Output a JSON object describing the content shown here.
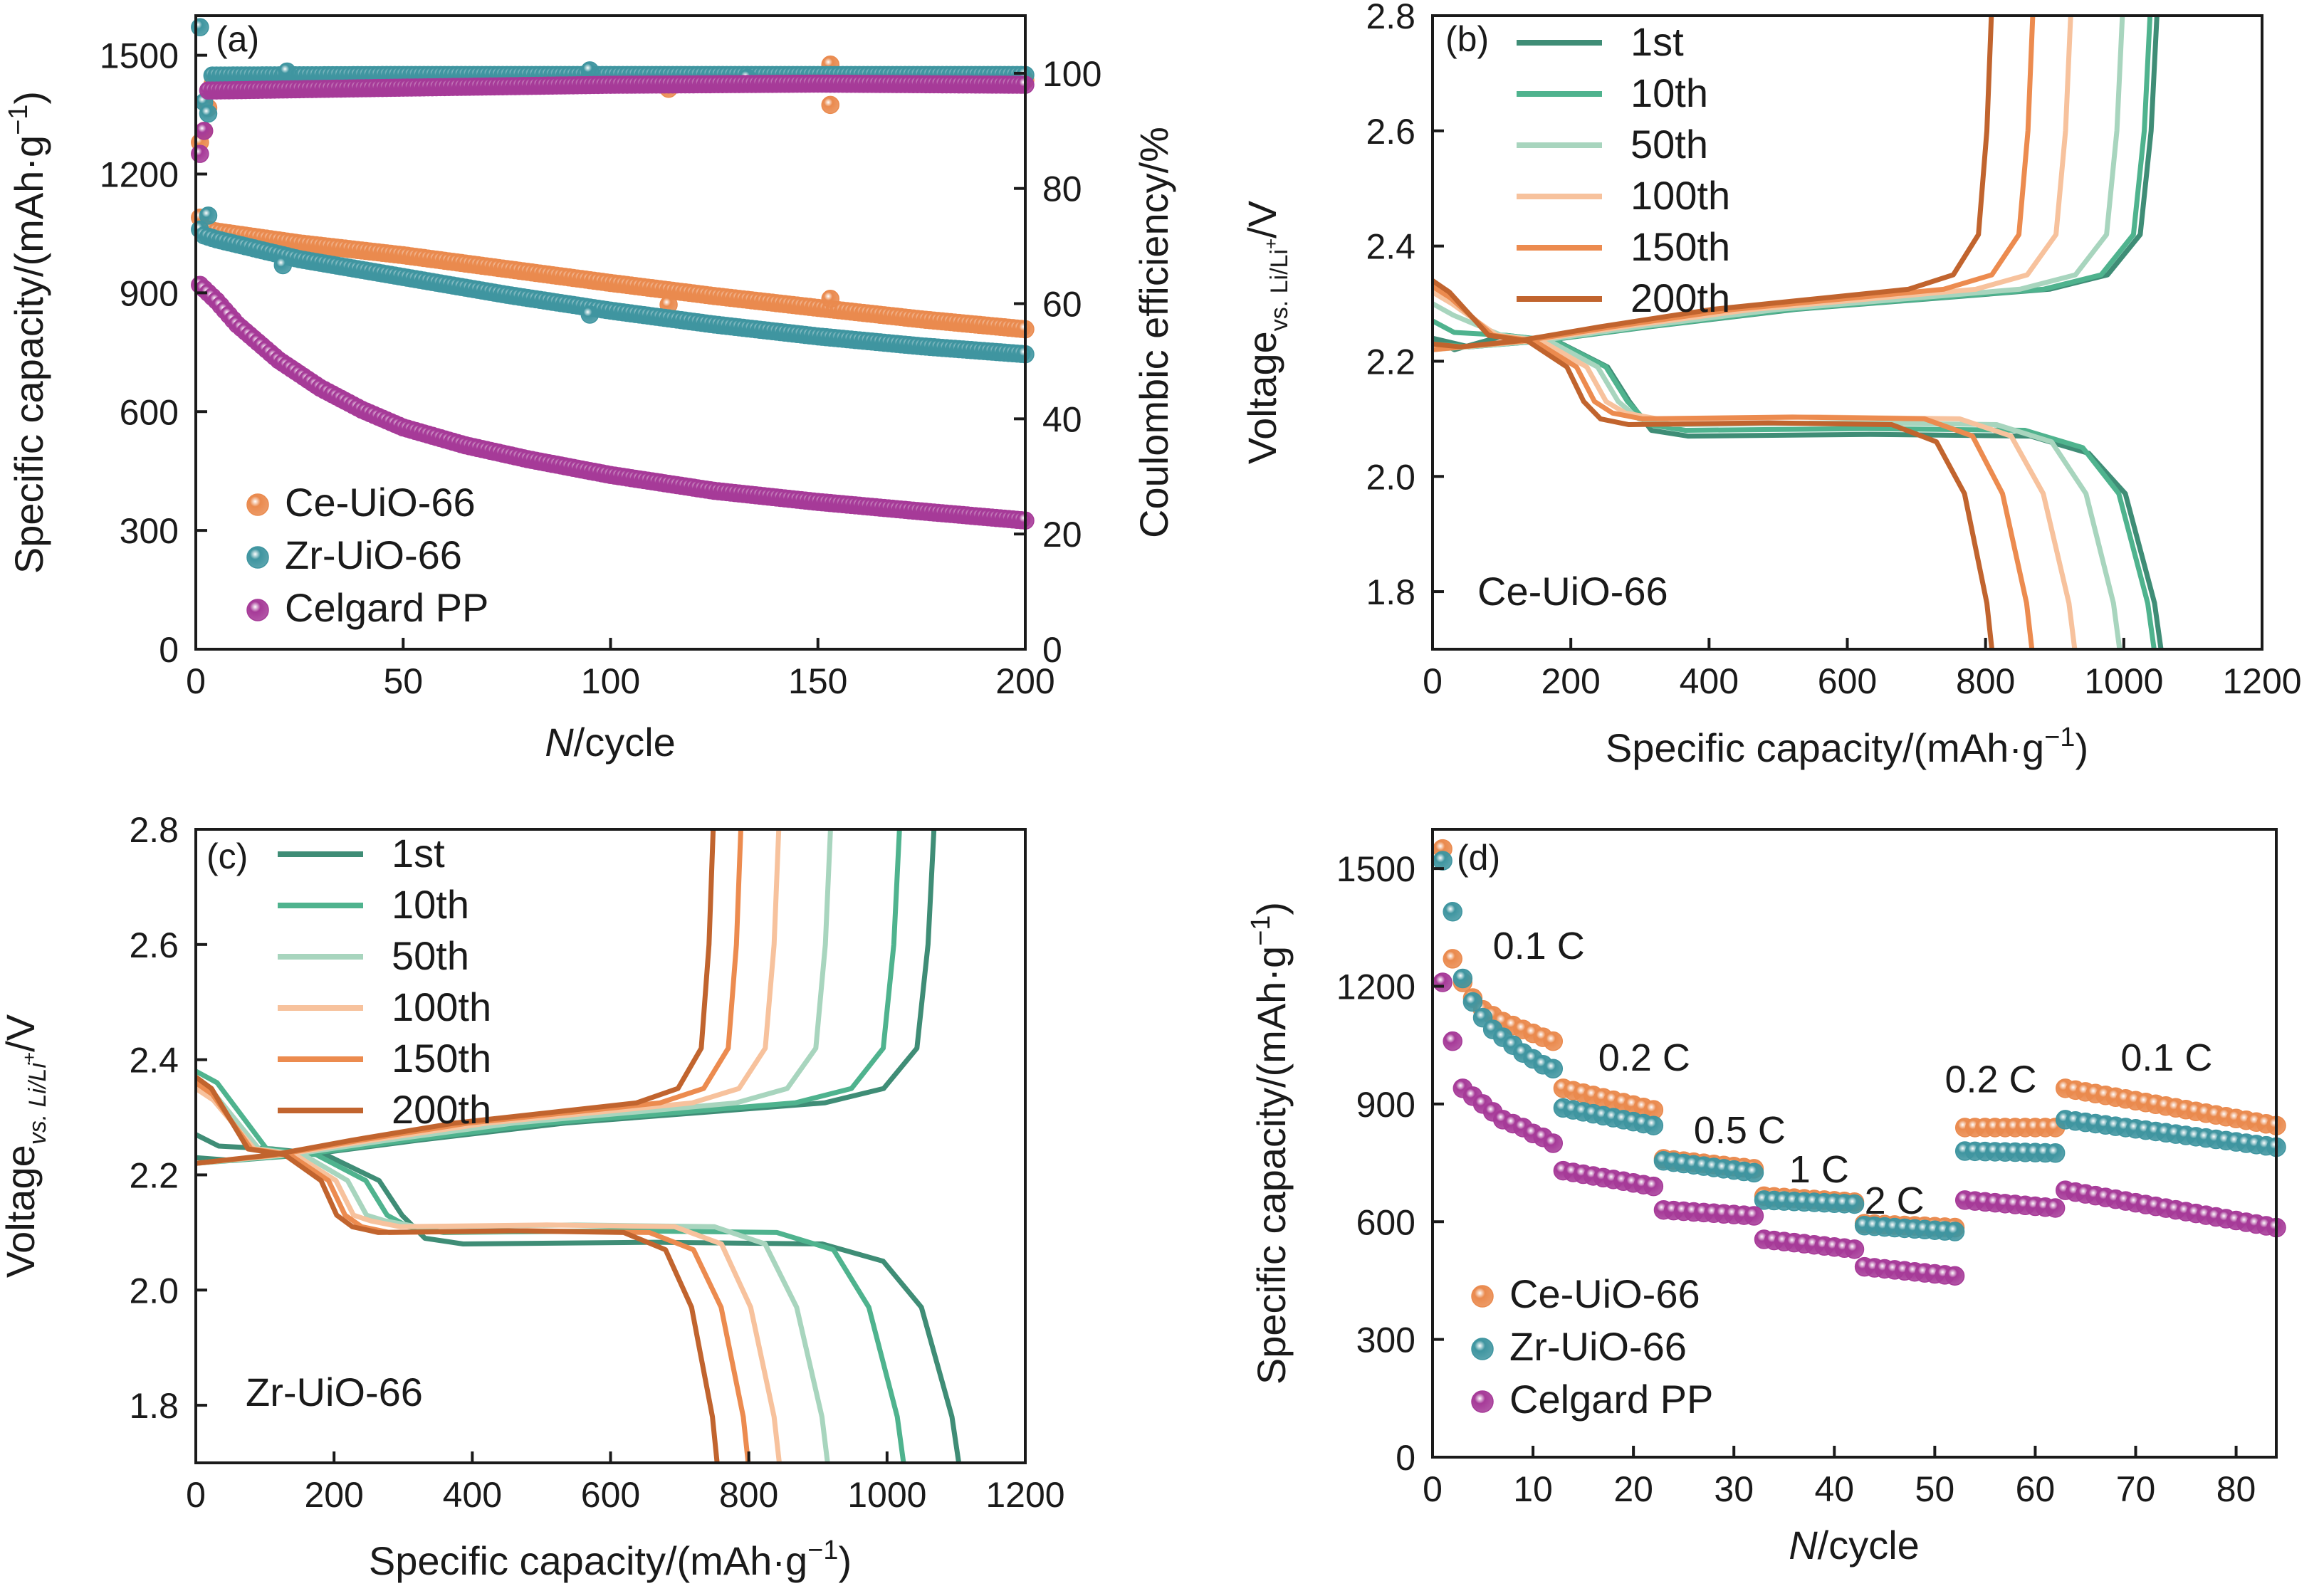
{
  "colors": {
    "ce": "#ea8a4e",
    "zr": "#3f95a0",
    "pp": "#a63a98",
    "cycles": [
      "#3f8d76",
      "#4fb38e",
      "#a8d5be",
      "#f7c29d",
      "#ec8b4f",
      "#c1642e"
    ]
  },
  "marker_style": "shaded-sphere",
  "chart_data": [
    {
      "id": "a",
      "type": "scatter",
      "panel_label": "(a)",
      "xlabel_italic": "N",
      "xlabel_rest": "/cycle",
      "ylabel_text": "Specific capacity/(mAh·g",
      "ylabel_sup": "−1",
      "ylabel_close": ")",
      "y2label": "Coulombic efficiency/%",
      "xlim": [
        0,
        200
      ],
      "ylim": [
        0,
        1600
      ],
      "y2lim": [
        0,
        110
      ],
      "xticks": [
        0,
        50,
        100,
        150,
        200
      ],
      "yticks": [
        0,
        300,
        600,
        900,
        1200,
        1500
      ],
      "y2ticks": [
        0,
        20,
        40,
        60,
        80,
        100
      ],
      "legend": [
        "Ce-UiO-66",
        "Zr-UiO-66",
        "Celgard PP"
      ],
      "legend_position": "bottom-left",
      "series": [
        {
          "name": "Ce-UiO-66",
          "color_key": "ce",
          "axis": "left",
          "anchors": [
            [
              1,
              1090
            ],
            [
              2,
              1062
            ],
            [
              5,
              1055
            ],
            [
              25,
              1025
            ],
            [
              50,
              995
            ],
            [
              75,
              960
            ],
            [
              100,
              925
            ],
            [
              125,
              892
            ],
            [
              150,
              862
            ],
            [
              175,
              833
            ],
            [
              200,
              808
            ]
          ],
          "outliers": [
            [
              114,
              870
            ],
            [
              153,
              885
            ]
          ]
        },
        {
          "name": "Zr-UiO-66",
          "color_key": "zr",
          "axis": "left",
          "anchors": [
            [
              1,
              1060
            ],
            [
              2,
              1045
            ],
            [
              5,
              1035
            ],
            [
              25,
              985
            ],
            [
              50,
              940
            ],
            [
              75,
              895
            ],
            [
              100,
              855
            ],
            [
              125,
              820
            ],
            [
              150,
              790
            ],
            [
              175,
              765
            ],
            [
              200,
              745
            ]
          ],
          "outliers": [
            [
              3,
              1095
            ],
            [
              21,
              970
            ],
            [
              95,
              845
            ]
          ]
        },
        {
          "name": "Celgard PP",
          "color_key": "pp",
          "axis": "left",
          "anchors": [
            [
              1,
              920
            ],
            [
              5,
              880
            ],
            [
              10,
              820
            ],
            [
              20,
              730
            ],
            [
              30,
              660
            ],
            [
              40,
              605
            ],
            [
              50,
              560
            ],
            [
              65,
              515
            ],
            [
              80,
              480
            ],
            [
              100,
              440
            ],
            [
              125,
              400
            ],
            [
              150,
              372
            ],
            [
              175,
              348
            ],
            [
              200,
              325
            ]
          ]
        },
        {
          "name": "Ce-UiO-66",
          "color_key": "ce",
          "axis": "right",
          "anchors": [
            [
              4,
              98
            ],
            [
              50,
              98.4
            ],
            [
              100,
              98.6
            ],
            [
              150,
              98.8
            ],
            [
              200,
              98.8
            ]
          ],
          "start": [
            [
              1,
              88
            ],
            [
              2,
              90
            ],
            [
              3,
              94
            ]
          ],
          "outliers": [
            [
              153,
              101.5
            ],
            [
              153,
              94.5
            ],
            [
              114,
              97.3
            ]
          ]
        },
        {
          "name": "Zr-UiO-66",
          "color_key": "zr",
          "axis": "right",
          "anchors": [
            [
              4,
              99.6
            ],
            [
              50,
              99.7
            ],
            [
              100,
              99.7
            ],
            [
              150,
              99.7
            ],
            [
              200,
              99.7
            ]
          ],
          "start": [
            [
              1,
              108
            ],
            [
              2,
              95
            ],
            [
              3,
              93
            ]
          ],
          "outliers": [
            [
              22,
              100.3
            ],
            [
              95,
              100.5
            ],
            [
              133,
              99.2
            ]
          ]
        },
        {
          "name": "Celgard PP",
          "color_key": "pp",
          "axis": "right",
          "anchors": [
            [
              4,
              97
            ],
            [
              50,
              97.5
            ],
            [
              100,
              98
            ],
            [
              150,
              98.2
            ],
            [
              200,
              98
            ]
          ],
          "start": [
            [
              1,
              86
            ],
            [
              2,
              90
            ]
          ]
        }
      ]
    },
    {
      "id": "b",
      "type": "line",
      "panel_label": "(b)",
      "sample_label": "Ce-UiO-66",
      "xlabel_text": "Specific capacity/(mAh·g",
      "xlabel_sup": "−1",
      "xlabel_close": ")",
      "ylabel_text": "Voltage",
      "ylabel_sub": "vs. Li/Li",
      "ylabel_subsup": "+",
      "ylabel_rest": "/V",
      "xlim": [
        0,
        1200
      ],
      "ylim": [
        1.7,
        2.8
      ],
      "xticks": [
        0,
        200,
        400,
        600,
        800,
        1000,
        1200
      ],
      "yticks": [
        1.8,
        2.0,
        2.2,
        2.4,
        2.6,
        2.8
      ],
      "legend": [
        "1st",
        "10th",
        "50th",
        "100th",
        "150th",
        "200th"
      ],
      "legend_position": "top-left",
      "series": [
        {
          "name": "1st",
          "color_idx": 0,
          "discharge_end": 1055,
          "charge_end": 1050,
          "plateau_v": 2.07,
          "init_v": 2.24,
          "charge_start_v": 2.24
        },
        {
          "name": "10th",
          "color_idx": 1,
          "discharge_end": 1045,
          "charge_end": 1040,
          "plateau_v": 2.08,
          "init_v": 2.27,
          "charge_start_v": 2.23
        },
        {
          "name": "50th",
          "color_idx": 2,
          "discharge_end": 995,
          "charge_end": 1000,
          "plateau_v": 2.09,
          "init_v": 2.3,
          "charge_start_v": 2.22
        },
        {
          "name": "100th",
          "color_idx": 3,
          "discharge_end": 930,
          "charge_end": 925,
          "plateau_v": 2.1,
          "init_v": 2.32,
          "charge_start_v": 2.22
        },
        {
          "name": "150th",
          "color_idx": 4,
          "discharge_end": 868,
          "charge_end": 870,
          "plateau_v": 2.1,
          "init_v": 2.33,
          "charge_start_v": 2.22
        },
        {
          "name": "200th",
          "color_idx": 5,
          "discharge_end": 810,
          "charge_end": 810,
          "plateau_v": 2.09,
          "init_v": 2.34,
          "charge_start_v": 2.23
        }
      ]
    },
    {
      "id": "c",
      "type": "line",
      "panel_label": "(c)",
      "sample_label": "Zr-UiO-66",
      "xlabel_text": "Specific capacity/(mAh·g",
      "xlabel_sup": "−1",
      "xlabel_close": ")",
      "ylabel_text": "Voltage",
      "ylabel_sub": "vs. Li/Li",
      "ylabel_subsup": "+",
      "ylabel_rest": "/V",
      "xlim": [
        0,
        1200
      ],
      "ylim": [
        1.7,
        2.8
      ],
      "xticks": [
        0,
        200,
        400,
        600,
        800,
        1000,
        1200
      ],
      "yticks": [
        1.8,
        2.0,
        2.2,
        2.4,
        2.6,
        2.8
      ],
      "legend": [
        "1st",
        "10th",
        "50th",
        "100th",
        "150th",
        "200th"
      ],
      "legend_position": "top-left",
      "series": [
        {
          "name": "1st",
          "color_idx": 0,
          "discharge_end": 1105,
          "charge_end": 1070,
          "plateau_v": 2.08,
          "init_v": 2.27,
          "charge_start_v": 2.23
        },
        {
          "name": "10th",
          "color_idx": 1,
          "discharge_end": 1025,
          "charge_end": 1020,
          "plateau_v": 2.1,
          "init_v": 2.38,
          "charge_start_v": 2.22
        },
        {
          "name": "50th",
          "color_idx": 2,
          "discharge_end": 915,
          "charge_end": 920,
          "plateau_v": 2.11,
          "init_v": 2.36,
          "charge_start_v": 2.22
        },
        {
          "name": "100th",
          "color_idx": 3,
          "discharge_end": 845,
          "charge_end": 845,
          "plateau_v": 2.11,
          "init_v": 2.35,
          "charge_start_v": 2.22
        },
        {
          "name": "150th",
          "color_idx": 4,
          "discharge_end": 800,
          "charge_end": 790,
          "plateau_v": 2.1,
          "init_v": 2.36,
          "charge_start_v": 2.22
        },
        {
          "name": "200th",
          "color_idx": 5,
          "discharge_end": 755,
          "charge_end": 750,
          "plateau_v": 2.1,
          "init_v": 2.37,
          "charge_start_v": 2.22
        }
      ]
    },
    {
      "id": "d",
      "type": "scatter",
      "panel_label": "(d)",
      "xlabel_italic": "N",
      "xlabel_rest": "/cycle",
      "ylabel_text": "Specific capacity/(mAh·g",
      "ylabel_sup": "−1",
      "ylabel_close": ")",
      "xlim": [
        0,
        84
      ],
      "ylim": [
        0,
        1600
      ],
      "xticks": [
        0,
        10,
        20,
        30,
        40,
        50,
        60,
        70,
        80
      ],
      "yticks": [
        0,
        300,
        600,
        900,
        1200,
        1500
      ],
      "legend": [
        "Ce-UiO-66",
        "Zr-UiO-66",
        "Celgard PP"
      ],
      "legend_position": "bottom-left",
      "rate_labels": [
        {
          "text": "0.1 C",
          "x": 6,
          "y": 1270
        },
        {
          "text": "0.2 C",
          "x": 16.5,
          "y": 985
        },
        {
          "text": "0.5 C",
          "x": 26,
          "y": 800
        },
        {
          "text": "1 C",
          "x": 35.5,
          "y": 700
        },
        {
          "text": "2 C",
          "x": 43,
          "y": 620
        },
        {
          "text": "0.2 C",
          "x": 51,
          "y": 930
        },
        {
          "text": "0.1 C",
          "x": 68.5,
          "y": 985
        }
      ],
      "series": [
        {
          "name": "Ce-UiO-66",
          "color_key": "ce",
          "segments": [
            {
              "x0": 1,
              "x1": 12,
              "values": [
                1550,
                1270,
                1210,
                1170,
                1140,
                1125,
                1110,
                1100,
                1090,
                1080,
                1070,
                1060
              ]
            },
            {
              "x0": 13,
              "x1": 22,
              "y0": 940,
              "y1": 885
            },
            {
              "x0": 23,
              "x1": 32,
              "y0": 760,
              "y1": 735
            },
            {
              "x0": 33,
              "x1": 42,
              "y0": 665,
              "y1": 650
            },
            {
              "x0": 43,
              "x1": 52,
              "y0": 595,
              "y1": 585
            },
            {
              "x0": 53,
              "x1": 62,
              "y0": 840,
              "y1": 840
            },
            {
              "x0": 63,
              "x1": 84,
              "y0": 940,
              "y1": 845
            }
          ]
        },
        {
          "name": "Zr-UiO-66",
          "color_key": "zr",
          "segments": [
            {
              "x0": 1,
              "x1": 12,
              "values": [
                1520,
                1390,
                1220,
                1160,
                1120,
                1090,
                1070,
                1050,
                1030,
                1015,
                1000,
                990
              ]
            },
            {
              "x0": 13,
              "x1": 22,
              "y0": 890,
              "y1": 845
            },
            {
              "x0": 23,
              "x1": 32,
              "y0": 755,
              "y1": 725
            },
            {
              "x0": 33,
              "x1": 42,
              "y0": 655,
              "y1": 645
            },
            {
              "x0": 43,
              "x1": 52,
              "y0": 590,
              "y1": 575
            },
            {
              "x0": 53,
              "x1": 62,
              "y0": 780,
              "y1": 775
            },
            {
              "x0": 63,
              "x1": 84,
              "y0": 860,
              "y1": 790
            }
          ]
        },
        {
          "name": "Celgard PP",
          "color_key": "pp",
          "segments": [
            {
              "x0": 1,
              "x1": 12,
              "values": [
                1210,
                1060,
                940,
                920,
                900,
                880,
                860,
                850,
                840,
                825,
                815,
                800
              ]
            },
            {
              "x0": 13,
              "x1": 22,
              "y0": 730,
              "y1": 690
            },
            {
              "x0": 23,
              "x1": 32,
              "y0": 630,
              "y1": 615
            },
            {
              "x0": 33,
              "x1": 42,
              "y0": 555,
              "y1": 530
            },
            {
              "x0": 43,
              "x1": 52,
              "y0": 485,
              "y1": 462
            },
            {
              "x0": 53,
              "x1": 62,
              "y0": 655,
              "y1": 635
            },
            {
              "x0": 63,
              "x1": 84,
              "y0": 680,
              "y1": 585
            }
          ]
        }
      ]
    }
  ]
}
